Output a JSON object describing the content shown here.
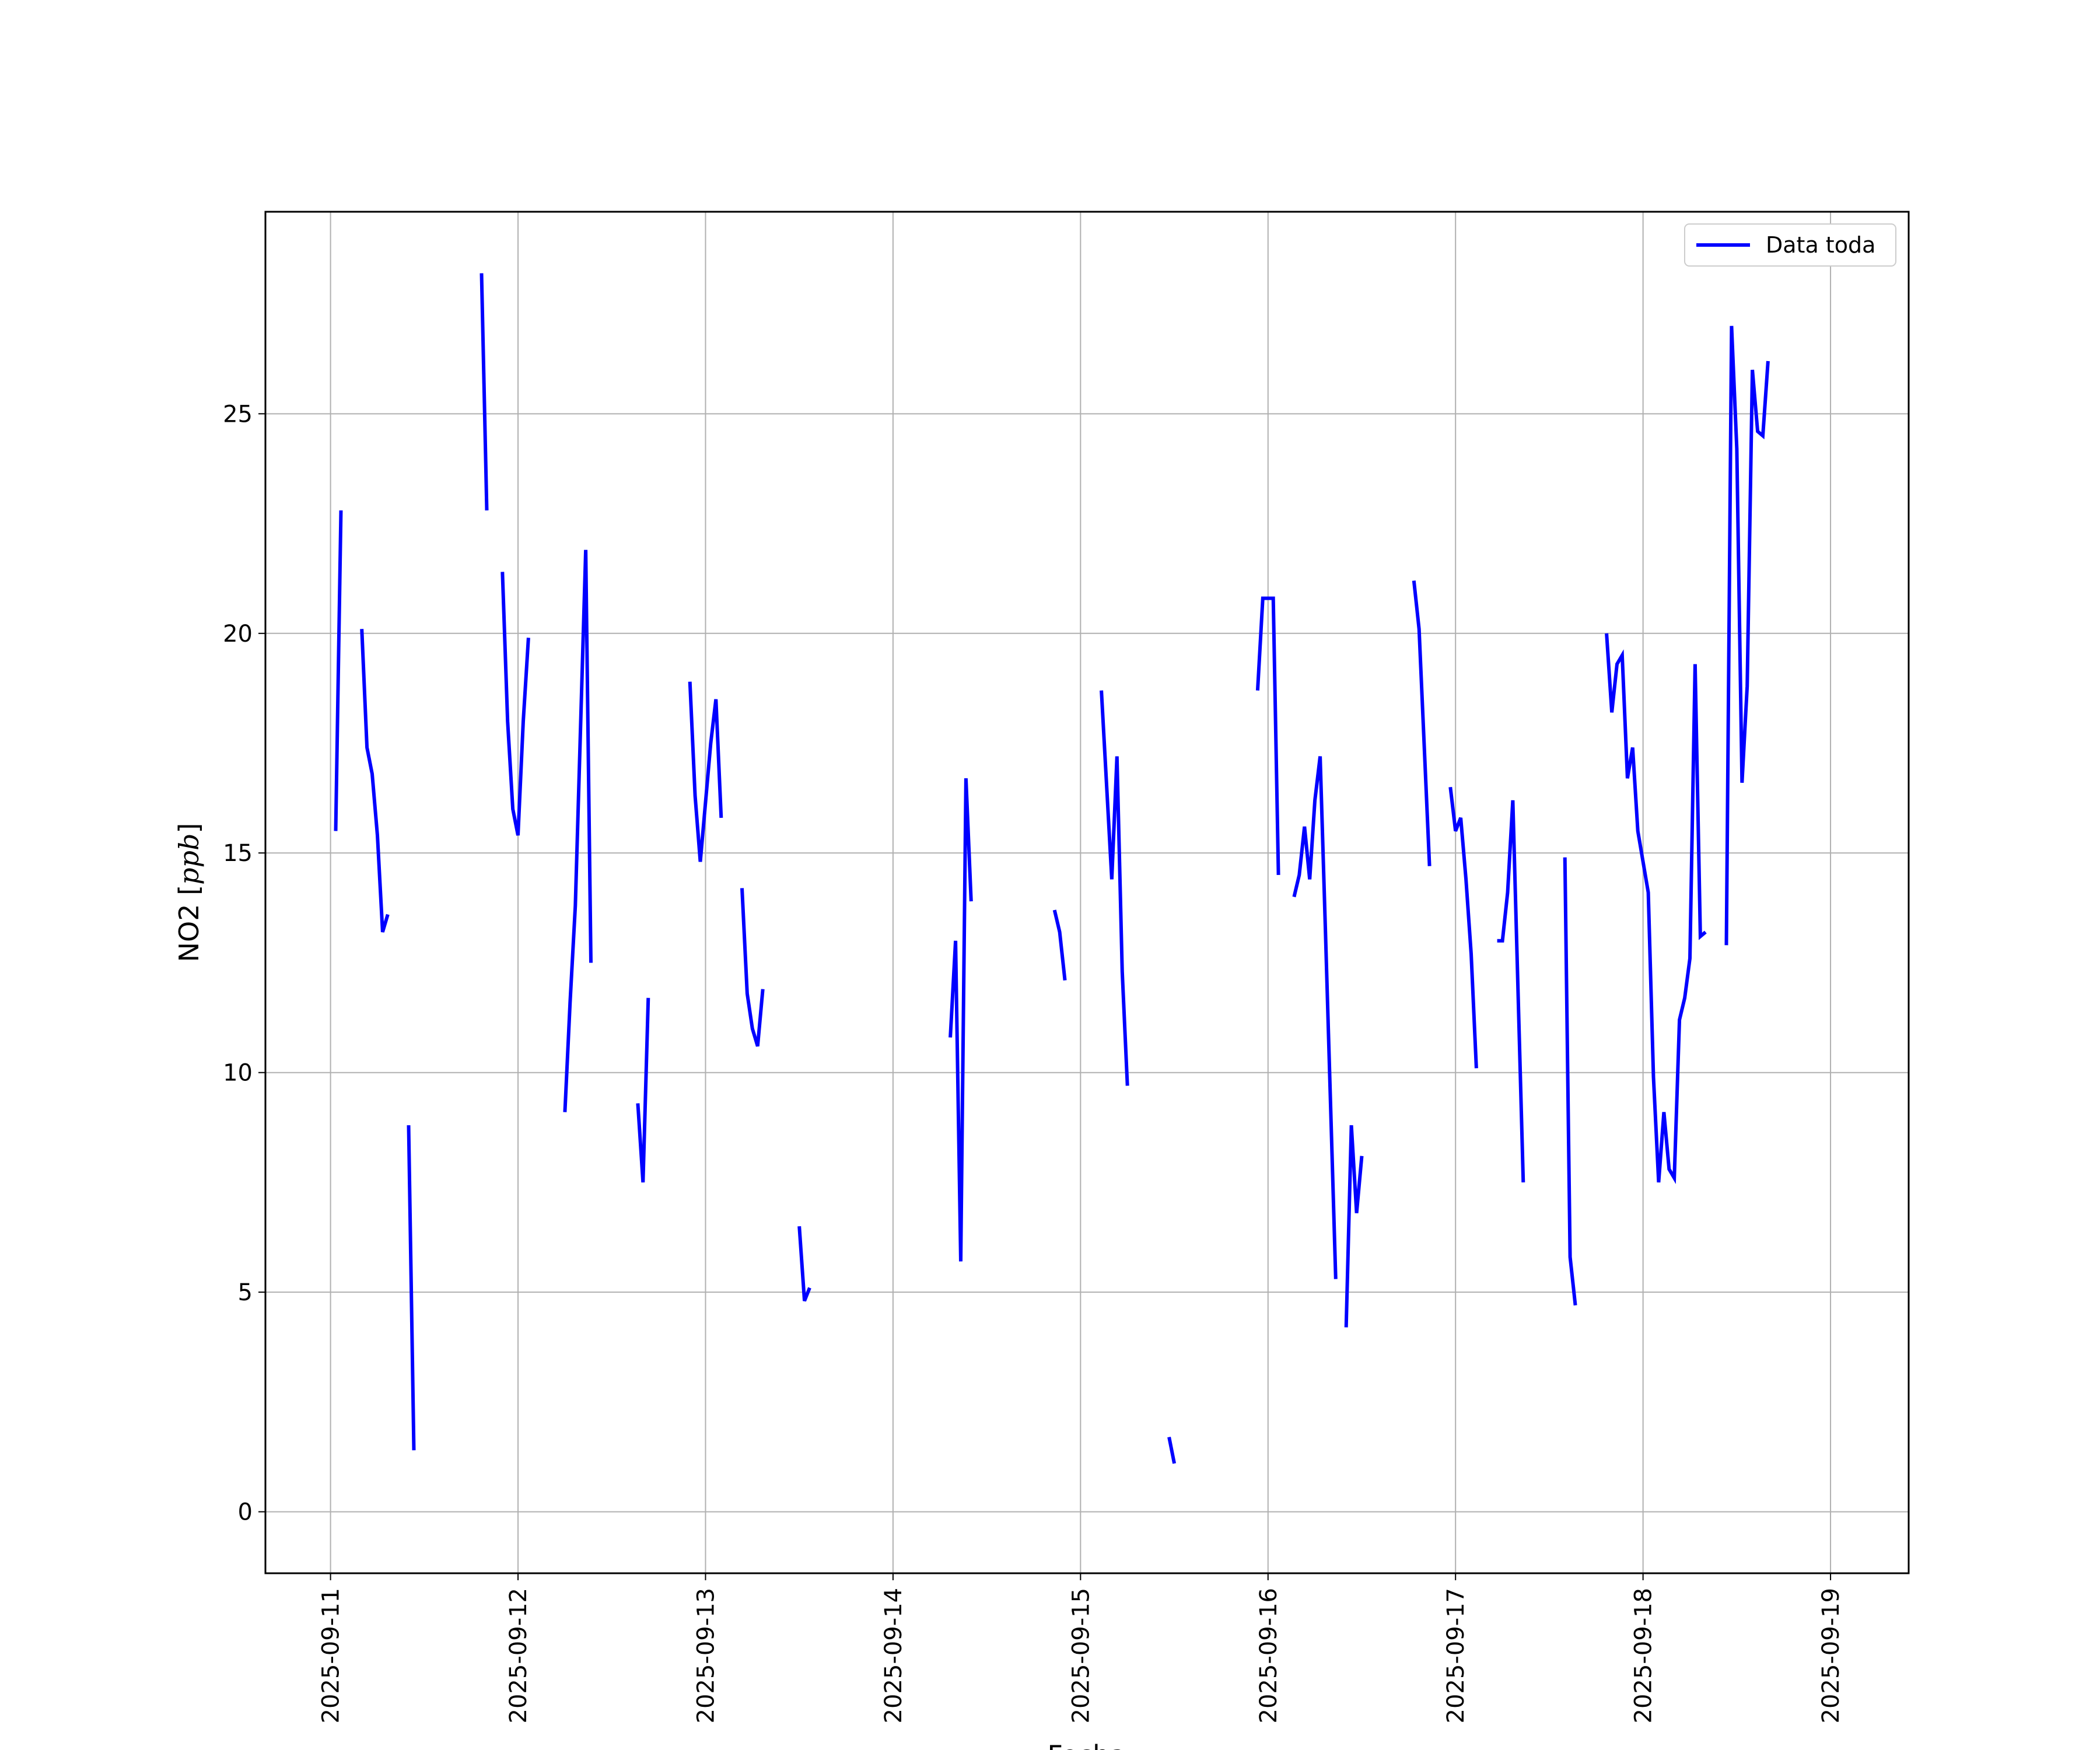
{
  "chart_data": {
    "type": "line",
    "title": "",
    "xlabel": "Fecha",
    "ylabel_text": "NO2 [",
    "ylabel_unit": "ppb",
    "ylabel_close": "]",
    "x_ticks": [
      "2025-09-11",
      "2025-09-12",
      "2025-09-13",
      "2025-09-14",
      "2025-09-15",
      "2025-09-16",
      "2025-09-17",
      "2025-09-18",
      "2025-09-19"
    ],
    "y_ticks": [
      0,
      5,
      10,
      15,
      20,
      25
    ],
    "ylim": [
      -1.4,
      29.6
    ],
    "xlim": [
      "2025-09-10 15:40",
      "2025-09-19 10:00"
    ],
    "grid": true,
    "legend_position": "top-right",
    "color": "#0000ff",
    "series": [
      {
        "name": "Data toda",
        "segments": [
          [
            [
              "2025-09-11 00:40",
              15.5
            ],
            [
              "2025-09-11 01:20",
              22.8
            ]
          ],
          [
            [
              "2025-09-11 04:00",
              20.1
            ],
            [
              "2025-09-11 04:40",
              17.4
            ],
            [
              "2025-09-11 05:20",
              16.8
            ],
            [
              "2025-09-11 06:00",
              15.4
            ],
            [
              "2025-09-11 06:40",
              13.2
            ],
            [
              "2025-09-11 07:20",
              13.6
            ]
          ],
          [
            [
              "2025-09-11 10:00",
              8.8
            ],
            [
              "2025-09-11 10:40",
              1.4
            ]
          ],
          [
            [
              "2025-09-11 19:20",
              28.2
            ],
            [
              "2025-09-11 20:00",
              22.8
            ]
          ],
          [
            [
              "2025-09-11 22:00",
              21.4
            ],
            [
              "2025-09-11 22:40",
              18.0
            ],
            [
              "2025-09-11 23:20",
              16.0
            ],
            [
              "2025-09-12 00:00",
              15.4
            ],
            [
              "2025-09-12 00:40",
              18.0
            ],
            [
              "2025-09-12 01:20",
              19.9
            ]
          ],
          [
            [
              "2025-09-12 06:00",
              9.1
            ],
            [
              "2025-09-12 06:40",
              11.6
            ],
            [
              "2025-09-12 07:20",
              13.8
            ],
            [
              "2025-09-12 08:40",
              21.9
            ],
            [
              "2025-09-12 09:20",
              12.5
            ]
          ],
          [
            [
              "2025-09-12 15:20",
              9.3
            ],
            [
              "2025-09-12 16:00",
              7.5
            ],
            [
              "2025-09-12 16:40",
              11.7
            ]
          ],
          [
            [
              "2025-09-12 22:00",
              18.9
            ],
            [
              "2025-09-12 22:40",
              16.3
            ],
            [
              "2025-09-12 23:20",
              14.8
            ],
            [
              "2025-09-13 00:40",
              17.5
            ],
            [
              "2025-09-13 01:20",
              18.5
            ],
            [
              "2025-09-13 02:00",
              15.8
            ]
          ],
          [
            [
              "2025-09-13 04:40",
              14.2
            ],
            [
              "2025-09-13 05:20",
              11.8
            ],
            [
              "2025-09-13 06:00",
              11.0
            ],
            [
              "2025-09-13 06:40",
              10.6
            ],
            [
              "2025-09-13 07:20",
              11.9
            ]
          ],
          [
            [
              "2025-09-13 12:00",
              6.5
            ],
            [
              "2025-09-13 12:40",
              4.8
            ],
            [
              "2025-09-13 13:20",
              5.1
            ]
          ],
          [
            [
              "2025-09-14 07:20",
              10.8
            ],
            [
              "2025-09-14 08:00",
              13.0
            ],
            [
              "2025-09-14 08:40",
              5.7
            ],
            [
              "2025-09-14 09:20",
              16.7
            ],
            [
              "2025-09-14 10:00",
              13.9
            ]
          ],
          [
            [
              "2025-09-14 20:40",
              13.7
            ],
            [
              "2025-09-14 21:20",
              13.2
            ],
            [
              "2025-09-14 22:00",
              12.1
            ]
          ],
          [
            [
              "2025-09-15 02:40",
              18.7
            ],
            [
              "2025-09-15 04:00",
              14.4
            ],
            [
              "2025-09-15 04:40",
              17.2
            ],
            [
              "2025-09-15 05:20",
              12.3
            ],
            [
              "2025-09-15 06:00",
              9.7
            ]
          ],
          [
            [
              "2025-09-15 11:20",
              1.7
            ],
            [
              "2025-09-15 12:00",
              1.1
            ]
          ],
          [
            [
              "2025-09-15 22:40",
              18.7
            ],
            [
              "2025-09-15 23:20",
              20.8
            ],
            [
              "2025-09-16 00:40",
              20.8
            ],
            [
              "2025-09-16 01:20",
              14.5
            ]
          ],
          [
            [
              "2025-09-16 03:20",
              14.0
            ],
            [
              "2025-09-16 04:00",
              14.5
            ],
            [
              "2025-09-16 04:40",
              15.6
            ],
            [
              "2025-09-16 05:20",
              14.4
            ],
            [
              "2025-09-16 06:00",
              16.2
            ],
            [
              "2025-09-16 06:40",
              17.2
            ],
            [
              "2025-09-16 07:20",
              13.3
            ],
            [
              "2025-09-16 08:40",
              5.3
            ]
          ],
          [
            [
              "2025-09-16 10:00",
              4.2
            ],
            [
              "2025-09-16 10:40",
              8.8
            ],
            [
              "2025-09-16 11:20",
              6.8
            ],
            [
              "2025-09-16 12:00",
              8.1
            ]
          ],
          [
            [
              "2025-09-16 18:40",
              21.2
            ],
            [
              "2025-09-16 19:20",
              20.1
            ],
            [
              "2025-09-16 20:40",
              14.7
            ]
          ],
          [
            [
              "2025-09-16 23:20",
              16.5
            ],
            [
              "2025-09-17 00:00",
              15.5
            ],
            [
              "2025-09-17 00:40",
              15.8
            ],
            [
              "2025-09-17 01:20",
              14.4
            ],
            [
              "2025-09-17 02:00",
              12.7
            ],
            [
              "2025-09-17 02:40",
              10.1
            ]
          ],
          [
            [
              "2025-09-17 05:20",
              13.0
            ],
            [
              "2025-09-17 06:00",
              13.0
            ],
            [
              "2025-09-17 06:40",
              14.1
            ],
            [
              "2025-09-17 07:20",
              16.2
            ],
            [
              "2025-09-17 08:40",
              7.5
            ]
          ],
          [
            [
              "2025-09-17 14:00",
              14.9
            ],
            [
              "2025-09-17 14:40",
              5.8
            ],
            [
              "2025-09-17 15:20",
              4.7
            ]
          ],
          [
            [
              "2025-09-17 19:20",
              20.0
            ],
            [
              "2025-09-17 20:00",
              18.2
            ],
            [
              "2025-09-17 20:40",
              19.3
            ],
            [
              "2025-09-17 21:20",
              19.5
            ],
            [
              "2025-09-17 22:00",
              16.7
            ],
            [
              "2025-09-17 22:40",
              17.4
            ],
            [
              "2025-09-17 23:20",
              15.5
            ],
            [
              "2025-09-18 00:40",
              14.1
            ],
            [
              "2025-09-18 01:20",
              9.9
            ],
            [
              "2025-09-18 02:00",
              7.5
            ],
            [
              "2025-09-18 02:40",
              9.1
            ],
            [
              "2025-09-18 03:20",
              7.8
            ],
            [
              "2025-09-18 04:00",
              7.6
            ],
            [
              "2025-09-18 04:40",
              11.2
            ],
            [
              "2025-09-18 05:20",
              11.7
            ],
            [
              "2025-09-18 06:00",
              12.6
            ],
            [
              "2025-09-18 06:40",
              19.3
            ],
            [
              "2025-09-18 07:20",
              13.1
            ],
            [
              "2025-09-18 08:00",
              13.2
            ]
          ],
          [
            [
              "2025-09-18 10:40",
              12.9
            ],
            [
              "2025-09-18 11:20",
              27.0
            ],
            [
              "2025-09-18 12:00",
              24.2
            ],
            [
              "2025-09-18 12:40",
              16.6
            ],
            [
              "2025-09-18 13:20",
              18.8
            ],
            [
              "2025-09-18 14:00",
              26.0
            ],
            [
              "2025-09-18 14:40",
              24.6
            ],
            [
              "2025-09-18 15:20",
              24.5
            ],
            [
              "2025-09-18 16:00",
              26.2
            ]
          ]
        ]
      }
    ]
  }
}
